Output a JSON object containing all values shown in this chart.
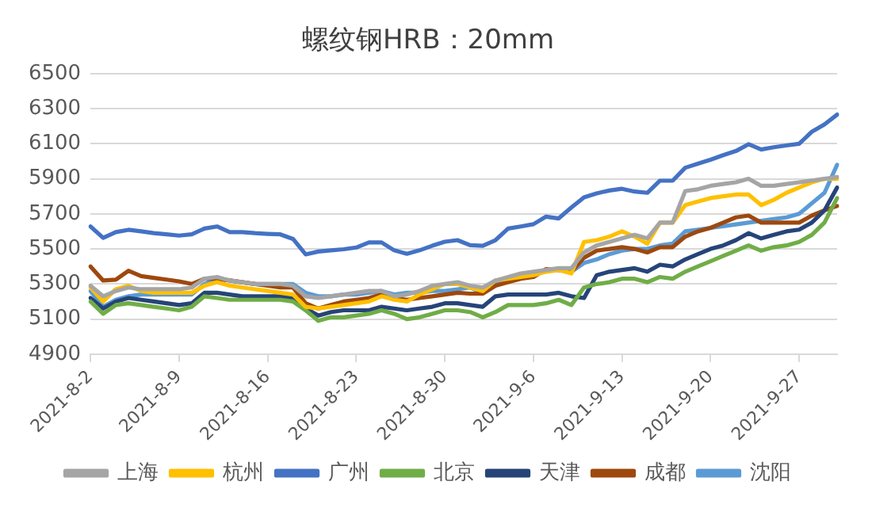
{
  "chart_data": {
    "type": "line",
    "title": "螺纹钢HRB：20mm",
    "categories": [
      "2021-8-2",
      null,
      null,
      null,
      null,
      null,
      null,
      "2021-8-9",
      null,
      null,
      null,
      null,
      null,
      null,
      "2021-8-16",
      null,
      null,
      null,
      null,
      null,
      null,
      "2021-8-23",
      null,
      null,
      null,
      null,
      null,
      null,
      "2021-8-30",
      null,
      null,
      null,
      null,
      null,
      null,
      "2021-9-6",
      null,
      null,
      null,
      null,
      null,
      null,
      "2021-9-13",
      null,
      null,
      null,
      null,
      null,
      null,
      "2021-9-20",
      null,
      null,
      null,
      null,
      null,
      null,
      "2021-9-27",
      null,
      null,
      null
    ],
    "series": [
      {
        "name": "上海",
        "color": "#a5a5a5",
        "values": [
          5290,
          5230,
          5260,
          5280,
          5270,
          5270,
          5270,
          5270,
          5280,
          5330,
          5340,
          5320,
          5310,
          5300,
          5300,
          5300,
          5290,
          5230,
          5220,
          5230,
          5240,
          5250,
          5260,
          5260,
          5230,
          5240,
          5260,
          5290,
          5300,
          5310,
          5290,
          5280,
          5320,
          5340,
          5360,
          5370,
          5380,
          5390,
          5390,
          5480,
          5520,
          5540,
          5560,
          5580,
          5560,
          5650,
          5650,
          5830,
          5840,
          5860,
          5870,
          5880,
          5900,
          5860,
          5860,
          5870,
          5880,
          5890,
          5900,
          5910
        ]
      },
      {
        "name": "杭州",
        "color": "#ffc000",
        "values": [
          5280,
          5200,
          5270,
          5290,
          5260,
          5250,
          5250,
          5250,
          5250,
          5290,
          5310,
          5290,
          5280,
          5270,
          5260,
          5250,
          5240,
          5170,
          5160,
          5170,
          5180,
          5190,
          5200,
          5230,
          5210,
          5200,
          5240,
          5270,
          5300,
          5300,
          5280,
          5260,
          5320,
          5330,
          5340,
          5350,
          5370,
          5380,
          5360,
          5540,
          5550,
          5570,
          5600,
          5570,
          5530,
          5650,
          5650,
          5750,
          5770,
          5790,
          5800,
          5810,
          5810,
          5750,
          5780,
          5820,
          5850,
          5880,
          5900,
          5900
        ]
      },
      {
        "name": "广州",
        "color": "#4472c4",
        "values": [
          5628,
          5563,
          5596,
          5609,
          5600,
          5590,
          5583,
          5576,
          5583,
          5616,
          5628,
          5596,
          5596,
          5590,
          5586,
          5583,
          5557,
          5469,
          5485,
          5492,
          5498,
          5508,
          5537,
          5537,
          5492,
          5472,
          5492,
          5518,
          5541,
          5550,
          5521,
          5518,
          5550,
          5616,
          5628,
          5641,
          5684,
          5674,
          5736,
          5794,
          5817,
          5833,
          5843,
          5827,
          5820,
          5889,
          5889,
          5963,
          5986,
          6009,
          6035,
          6058,
          6097,
          6067,
          6080,
          6090,
          6100,
          6168,
          6210,
          6266
        ]
      },
      {
        "name": "北京",
        "color": "#70ad47",
        "values": [
          5200,
          5130,
          5180,
          5190,
          5180,
          5170,
          5160,
          5150,
          5170,
          5230,
          5220,
          5210,
          5210,
          5210,
          5210,
          5210,
          5200,
          5150,
          5090,
          5110,
          5110,
          5120,
          5130,
          5150,
          5130,
          5100,
          5110,
          5130,
          5150,
          5150,
          5140,
          5110,
          5140,
          5180,
          5180,
          5180,
          5190,
          5210,
          5180,
          5280,
          5300,
          5310,
          5330,
          5330,
          5310,
          5340,
          5330,
          5370,
          5400,
          5430,
          5460,
          5490,
          5520,
          5490,
          5510,
          5520,
          5540,
          5580,
          5650,
          5790
        ]
      },
      {
        "name": "天津",
        "color": "#264478",
        "values": [
          5220,
          5160,
          5200,
          5220,
          5210,
          5200,
          5190,
          5180,
          5190,
          5250,
          5250,
          5240,
          5230,
          5230,
          5230,
          5230,
          5220,
          5160,
          5120,
          5140,
          5150,
          5150,
          5150,
          5170,
          5160,
          5150,
          5160,
          5170,
          5190,
          5190,
          5180,
          5170,
          5230,
          5240,
          5240,
          5240,
          5240,
          5250,
          5230,
          5220,
          5350,
          5370,
          5380,
          5390,
          5370,
          5410,
          5400,
          5440,
          5470,
          5500,
          5520,
          5550,
          5590,
          5560,
          5580,
          5600,
          5610,
          5650,
          5720,
          5850
        ]
      },
      {
        "name": "成都",
        "color": "#9e480e",
        "values": [
          5400,
          5320,
          5325,
          5375,
          5345,
          5335,
          5325,
          5315,
          5300,
          5330,
          5330,
          5320,
          5310,
          5300,
          5290,
          5280,
          5280,
          5190,
          5160,
          5180,
          5200,
          5210,
          5220,
          5240,
          5220,
          5210,
          5220,
          5230,
          5240,
          5250,
          5245,
          5245,
          5290,
          5310,
          5330,
          5340,
          5385,
          5380,
          5370,
          5450,
          5490,
          5500,
          5510,
          5500,
          5480,
          5510,
          5510,
          5570,
          5600,
          5620,
          5650,
          5680,
          5690,
          5650,
          5650,
          5650,
          5650,
          5690,
          5720,
          5745
        ]
      },
      {
        "name": "沈阳",
        "color": "#5b9bd5",
        "values": [
          5260,
          5170,
          5210,
          5230,
          5240,
          5240,
          5240,
          5240,
          5240,
          5300,
          5330,
          5320,
          5310,
          5300,
          5300,
          5300,
          5300,
          5250,
          5230,
          5230,
          5240,
          5240,
          5250,
          5260,
          5240,
          5250,
          5250,
          5260,
          5260,
          5270,
          5280,
          5250,
          5300,
          5330,
          5340,
          5350,
          5380,
          5380,
          5370,
          5420,
          5440,
          5470,
          5490,
          5500,
          5500,
          5520,
          5530,
          5600,
          5610,
          5620,
          5630,
          5640,
          5650,
          5660,
          5670,
          5680,
          5700,
          5760,
          5820,
          5980
        ]
      }
    ],
    "ylim": [
      4900,
      6500
    ],
    "yticks": [
      4900,
      5100,
      5300,
      5500,
      5700,
      5900,
      6100,
      6300,
      6500
    ],
    "grid": "y",
    "legend": "bottom",
    "marker": "none",
    "line_style": "solid"
  }
}
